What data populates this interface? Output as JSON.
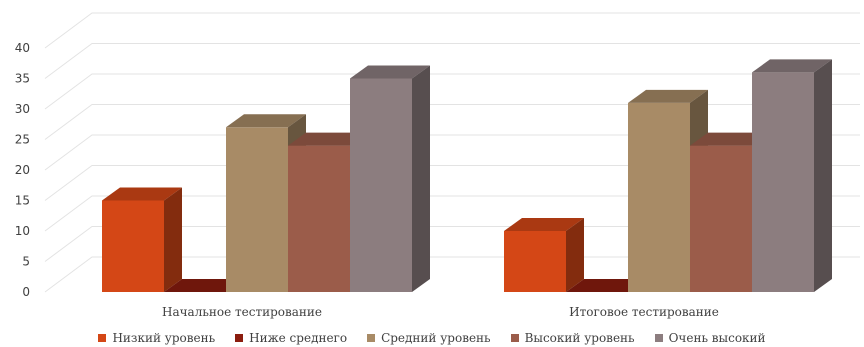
{
  "chart_data": {
    "type": "bar",
    "categories": [
      "Начальное тестирование",
      "Итоговое тестирование"
    ],
    "series": [
      {
        "name": "Низкий уровень",
        "values": [
          15,
          10
        ],
        "color": "#d44716"
      },
      {
        "name": "Ниже среднего",
        "values": [
          0,
          0
        ],
        "color": "#8b1d0f"
      },
      {
        "name": "Средний уровень",
        "values": [
          27,
          31
        ],
        "color": "#a88b66"
      },
      {
        "name": "Высокий уровень",
        "values": [
          24,
          24
        ],
        "color": "#9b5c4a"
      },
      {
        "name": "Очень высокий",
        "values": [
          35,
          36
        ],
        "color": "#8c7d7f"
      }
    ],
    "y_ticks": [
      0,
      5,
      10,
      15,
      20,
      25,
      30,
      35,
      40
    ],
    "ylim": [
      0,
      40
    ],
    "grid": true,
    "style": "3d-column",
    "legend_position": "bottom"
  }
}
